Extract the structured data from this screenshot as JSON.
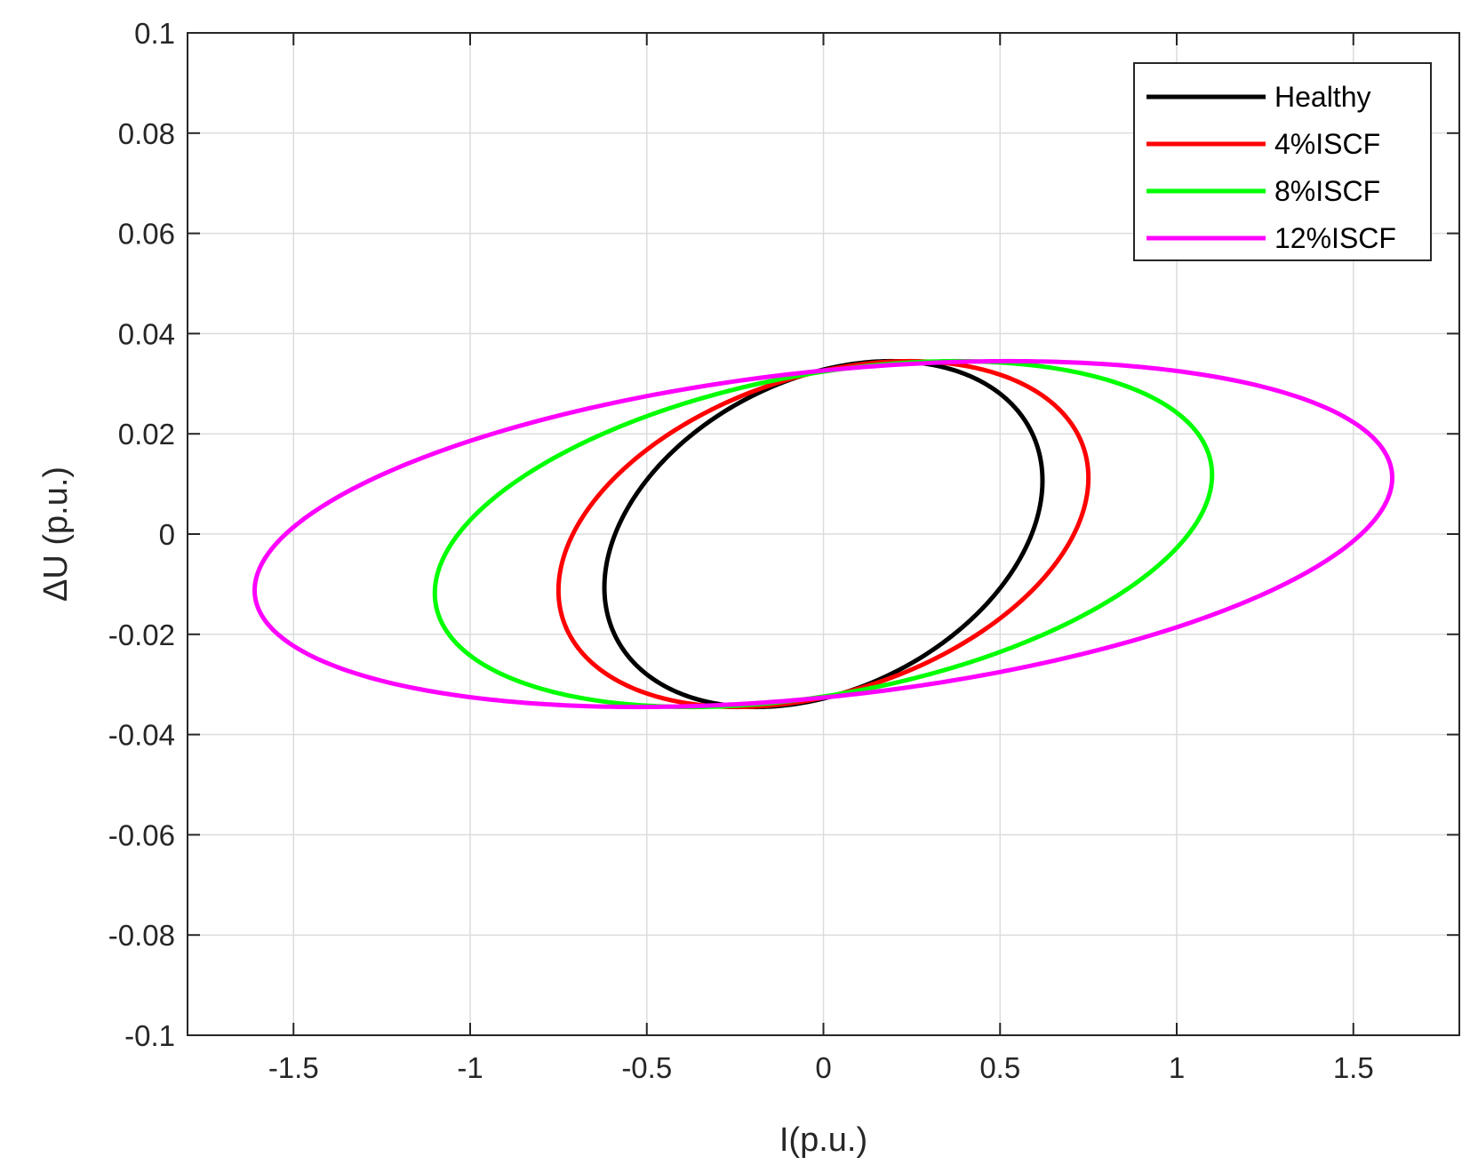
{
  "chart_data": {
    "type": "line",
    "title": "",
    "xlabel": "I(p.u.)",
    "ylabel": "ΔU (p.u.)",
    "xlim": [
      -1.8,
      1.8
    ],
    "ylim": [
      -0.1,
      0.1
    ],
    "xticks": [
      -1.5,
      -1,
      -0.5,
      0,
      0.5,
      1,
      1.5
    ],
    "xtick_labels": [
      "-1.5",
      "-1",
      "-0.5",
      "0",
      "0.5",
      "1",
      "1.5"
    ],
    "yticks": [
      -0.1,
      -0.08,
      -0.06,
      -0.04,
      -0.02,
      0,
      0.02,
      0.04,
      0.06,
      0.08,
      0.1
    ],
    "ytick_labels": [
      "-0.1",
      "-0.08",
      "-0.06",
      "-0.04",
      "-0.02",
      "0",
      "0.02",
      "0.04",
      "0.06",
      "0.08",
      "0.1"
    ],
    "grid": true,
    "legend_position": "top-right",
    "series": [
      {
        "name": "Healthy",
        "color": "#000000",
        "shape": "closed-loop",
        "amplitude_x": 0.62,
        "amplitude_y": 0.0345,
        "phase_shift_deg": 72
      },
      {
        "name": "4%ISCF",
        "color": "#ff0000",
        "shape": "closed-loop",
        "amplitude_x": 0.75,
        "amplitude_y": 0.0345,
        "phase_shift_deg": 71
      },
      {
        "name": "8%ISCF",
        "color": "#00ff00",
        "shape": "closed-loop",
        "amplitude_x": 1.1,
        "amplitude_y": 0.0345,
        "phase_shift_deg": 70
      },
      {
        "name": "12%ISCF",
        "color": "#ff00ff",
        "shape": "closed-loop",
        "amplitude_x": 1.61,
        "amplitude_y": 0.0345,
        "phase_shift_deg": 71
      }
    ]
  }
}
